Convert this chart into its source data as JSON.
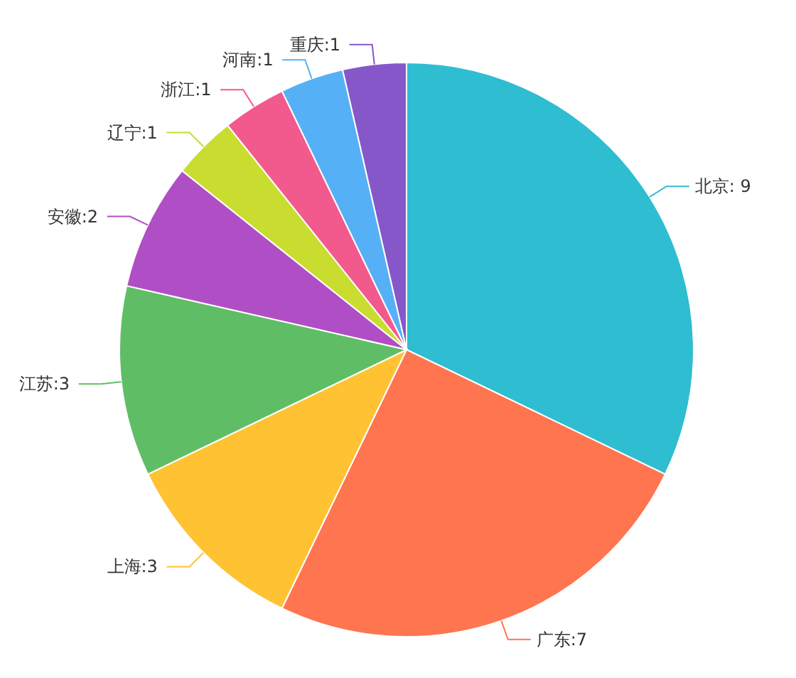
{
  "chart_data": {
    "type": "pie",
    "categories": [
      "北京",
      "广东",
      "上海",
      "江苏",
      "安徽",
      "辽宁",
      "浙江",
      "河南",
      "重庆"
    ],
    "values": [
      9,
      7,
      3,
      3,
      2,
      1,
      1,
      1,
      1
    ],
    "value_labels": [
      ": 9",
      ":7",
      ":3",
      ":3",
      ":2",
      ":1",
      ":1",
      ":1",
      ":1"
    ],
    "colors": [
      "#2ebdd1",
      "#ff7550",
      "#ffc233",
      "#5fbe65",
      "#b04ec5",
      "#c9dc30",
      "#f25a8e",
      "#56b0f5",
      "#8657c9"
    ]
  }
}
